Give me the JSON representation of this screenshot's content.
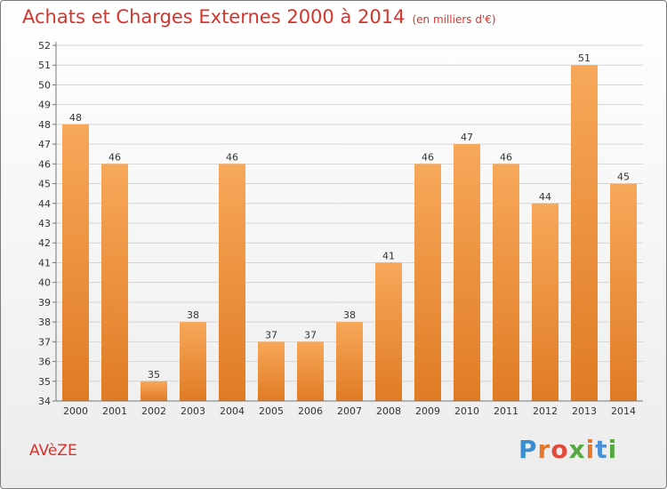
{
  "title": "Achats et Charges Externes 2000 à 2014",
  "unit_label": "(en milliers d'€)",
  "footer_label": "AVèZE",
  "logo": {
    "letters": [
      "P",
      "r",
      "o",
      "x",
      "i",
      "t",
      "i"
    ],
    "colors": [
      "#3a8fd1",
      "#e5762a",
      "#e04b3b",
      "#57a843",
      "#e5762a",
      "#4a90d9",
      "#57a843"
    ]
  },
  "colors": {
    "bar_top": "#f7a85a",
    "bar_bottom": "#e07b24",
    "accent": "#d8342c"
  },
  "chart_data": {
    "type": "bar",
    "categories": [
      "2000",
      "2001",
      "2002",
      "2003",
      "2004",
      "2005",
      "2006",
      "2007",
      "2008",
      "2009",
      "2010",
      "2011",
      "2012",
      "2013",
      "2014"
    ],
    "values": [
      48,
      46,
      35,
      38,
      46,
      37,
      37,
      38,
      41,
      46,
      47,
      46,
      44,
      51,
      45
    ],
    "ylim": [
      34,
      52
    ],
    "yticks": [
      34,
      35,
      36,
      37,
      38,
      39,
      40,
      41,
      42,
      43,
      44,
      45,
      46,
      47,
      48,
      49,
      50,
      51,
      52
    ],
    "grid": true,
    "data_labels": true
  }
}
